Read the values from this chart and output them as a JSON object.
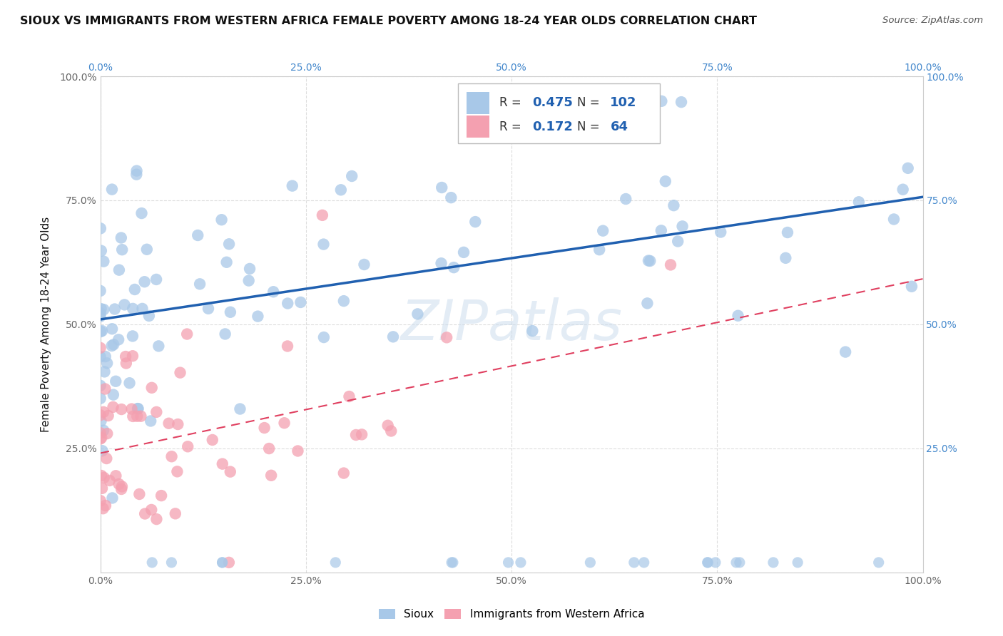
{
  "title": "SIOUX VS IMMIGRANTS FROM WESTERN AFRICA FEMALE POVERTY AMONG 18-24 YEAR OLDS CORRELATION CHART",
  "source": "Source: ZipAtlas.com",
  "ylabel": "Female Poverty Among 18-24 Year Olds",
  "sioux_R": 0.475,
  "sioux_N": 102,
  "immig_R": 0.172,
  "immig_N": 64,
  "sioux_color": "#a8c8e8",
  "immig_color": "#f4a0b0",
  "sioux_line_color": "#2060b0",
  "immig_line_color": "#e04060",
  "background_color": "#ffffff",
  "watermark": "ZIPatlas",
  "legend_R_color": "#2060b0",
  "legend_text_color": "#333333",
  "title_color": "#111111",
  "source_color": "#555555",
  "grid_color": "#dddddd",
  "tick_color": "#666666",
  "right_tick_color": "#4488cc",
  "top_tick_color": "#4488cc"
}
